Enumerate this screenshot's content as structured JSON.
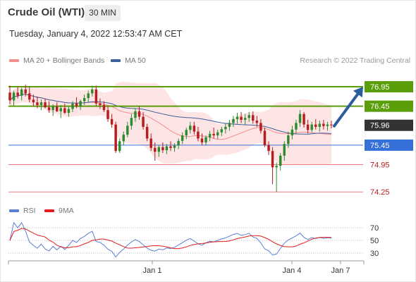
{
  "header": {
    "title": "Crude Oil (WTI)",
    "timeframe": "30 MIN",
    "datetime": "Tuesday, January 4, 2022 12:53:47 AM CET",
    "credit": "Research © 2022 Trading Central"
  },
  "legend": {
    "price": [
      {
        "label": "MA 20 + Bollinger Bands",
        "color": "#f48c8c"
      },
      {
        "label": "MA 50",
        "color": "#3d5f9a"
      }
    ],
    "indicator": [
      {
        "label": "RSI",
        "color": "#5b7fd6"
      },
      {
        "label": "9MA",
        "color": "#e01c1c"
      }
    ]
  },
  "colors": {
    "up": "#2f8a2f",
    "down": "#b81c1c",
    "resistance": "#5a9e0a",
    "pivot": "#3570d8",
    "support": "#f07a7a",
    "current": "#333333",
    "arrow": "#2c5d9c",
    "band": "#fde0e0"
  },
  "chart_data": [
    {
      "type": "candlestick",
      "title": "Crude Oil (WTI)",
      "ylim": [
        74.0,
        77.15
      ],
      "x_ticks": [
        "Jan 1",
        "Jan 4",
        "Jan 7"
      ],
      "levels": [
        {
          "value": 76.95,
          "label": "76.95",
          "kind": "resistance"
        },
        {
          "value": 76.45,
          "label": "76.45",
          "kind": "resistance"
        },
        {
          "value": 75.96,
          "label": "75.96",
          "kind": "current"
        },
        {
          "value": 75.45,
          "label": "75.45",
          "kind": "pivot"
        },
        {
          "value": 74.95,
          "label": "74.95",
          "kind": "support"
        },
        {
          "value": 74.25,
          "label": "74.25",
          "kind": "support"
        }
      ],
      "projection": {
        "from": 75.96,
        "to": 76.95
      },
      "candles": [
        [
          76.8,
          76.98,
          76.5,
          76.6
        ],
        [
          76.6,
          76.85,
          76.45,
          76.8
        ],
        [
          76.8,
          76.95,
          76.65,
          76.72
        ],
        [
          76.72,
          76.92,
          76.6,
          76.88
        ],
        [
          76.88,
          77.0,
          76.7,
          76.78
        ],
        [
          76.78,
          76.95,
          76.55,
          76.62
        ],
        [
          76.62,
          76.75,
          76.45,
          76.55
        ],
        [
          76.55,
          76.7,
          76.4,
          76.48
        ],
        [
          76.48,
          76.62,
          76.35,
          76.55
        ],
        [
          76.55,
          76.65,
          76.4,
          76.42
        ],
        [
          76.42,
          76.58,
          76.28,
          76.35
        ],
        [
          76.35,
          76.5,
          76.2,
          76.44
        ],
        [
          76.44,
          76.55,
          76.3,
          76.32
        ],
        [
          76.32,
          76.48,
          76.15,
          76.4
        ],
        [
          76.4,
          76.52,
          76.25,
          76.28
        ],
        [
          76.28,
          76.45,
          76.18,
          76.38
        ],
        [
          76.38,
          76.58,
          76.3,
          76.52
        ],
        [
          76.52,
          76.68,
          76.4,
          76.45
        ],
        [
          76.45,
          76.62,
          76.35,
          76.58
        ],
        [
          76.58,
          76.75,
          76.48,
          76.66
        ],
        [
          76.66,
          76.85,
          76.55,
          76.78
        ],
        [
          76.78,
          76.98,
          76.7,
          76.88
        ],
        [
          76.88,
          76.98,
          76.45,
          76.52
        ],
        [
          76.52,
          76.65,
          76.38,
          76.48
        ],
        [
          76.48,
          76.58,
          76.3,
          76.35
        ],
        [
          76.35,
          76.45,
          76.05,
          76.12
        ],
        [
          76.12,
          76.25,
          75.9,
          75.98
        ],
        [
          75.98,
          76.05,
          75.25,
          75.3
        ],
        [
          75.3,
          75.62,
          75.25,
          75.55
        ],
        [
          75.55,
          75.8,
          75.45,
          75.72
        ],
        [
          75.72,
          76.05,
          75.65,
          75.95
        ],
        [
          75.95,
          76.25,
          75.85,
          76.15
        ],
        [
          76.15,
          76.4,
          76.05,
          76.32
        ],
        [
          76.32,
          76.45,
          76.1,
          76.18
        ],
        [
          76.18,
          76.3,
          75.85,
          75.92
        ],
        [
          75.92,
          76.0,
          75.55,
          75.62
        ],
        [
          75.62,
          75.75,
          75.3,
          75.38
        ],
        [
          75.38,
          75.52,
          75.05,
          75.28
        ],
        [
          75.28,
          75.45,
          75.15,
          75.4
        ],
        [
          75.4,
          75.52,
          75.25,
          75.32
        ],
        [
          75.32,
          75.48,
          75.22,
          75.42
        ],
        [
          75.42,
          75.55,
          75.3,
          75.38
        ],
        [
          75.38,
          75.5,
          75.28,
          75.44
        ],
        [
          75.44,
          75.62,
          75.35,
          75.56
        ],
        [
          75.56,
          75.78,
          75.48,
          75.7
        ],
        [
          75.7,
          75.9,
          75.6,
          75.84
        ],
        [
          75.84,
          76.05,
          75.75,
          75.95
        ],
        [
          75.95,
          76.05,
          75.72,
          75.8
        ],
        [
          75.8,
          75.92,
          75.55,
          75.62
        ],
        [
          75.62,
          75.75,
          75.45,
          75.52
        ],
        [
          75.52,
          75.7,
          75.45,
          75.65
        ],
        [
          75.65,
          75.82,
          75.55,
          75.74
        ],
        [
          75.74,
          75.9,
          75.62,
          75.7
        ],
        [
          75.7,
          75.85,
          75.6,
          75.78
        ],
        [
          75.78,
          75.92,
          75.68,
          75.86
        ],
        [
          75.86,
          76.0,
          75.75,
          75.92
        ],
        [
          75.92,
          76.1,
          75.82,
          76.02
        ],
        [
          76.02,
          76.2,
          75.92,
          76.12
        ],
        [
          76.12,
          76.28,
          76.0,
          76.18
        ],
        [
          76.18,
          76.3,
          76.02,
          76.1
        ],
        [
          76.1,
          76.25,
          75.98,
          76.15
        ],
        [
          76.15,
          76.3,
          76.05,
          76.22
        ],
        [
          76.22,
          76.32,
          76.0,
          76.08
        ],
        [
          76.08,
          76.2,
          75.92,
          76.02
        ],
        [
          76.02,
          76.12,
          75.75,
          75.82
        ],
        [
          75.82,
          75.9,
          75.4,
          75.45
        ],
        [
          75.45,
          75.55,
          75.2,
          75.3
        ],
        [
          75.3,
          75.4,
          74.45,
          74.88
        ],
        [
          74.88,
          75.0,
          74.25,
          74.92
        ],
        [
          74.92,
          75.25,
          74.8,
          75.18
        ],
        [
          75.18,
          75.55,
          75.05,
          75.48
        ],
        [
          75.48,
          75.8,
          75.38,
          75.7
        ],
        [
          75.7,
          75.95,
          75.6,
          75.85
        ],
        [
          75.85,
          76.1,
          75.75,
          76.02
        ],
        [
          76.02,
          76.35,
          75.92,
          76.25
        ],
        [
          76.25,
          76.3,
          75.9,
          75.98
        ],
        [
          75.98,
          76.1,
          75.75,
          75.84
        ],
        [
          75.84,
          76.05,
          75.78,
          75.98
        ],
        [
          75.98,
          76.12,
          75.85,
          75.92
        ],
        [
          75.92,
          76.08,
          75.8,
          76.0
        ],
        [
          76.0,
          76.1,
          75.85,
          75.94
        ],
        [
          75.94,
          76.05,
          75.82,
          75.98
        ],
        [
          75.98,
          76.08,
          75.88,
          75.96
        ]
      ]
    },
    {
      "type": "line",
      "series": [
        {
          "name": "RSI"
        },
        {
          "name": "9MA"
        }
      ],
      "ylim": [
        20,
        80
      ],
      "y_ticks": [
        70,
        50,
        30
      ]
    }
  ]
}
